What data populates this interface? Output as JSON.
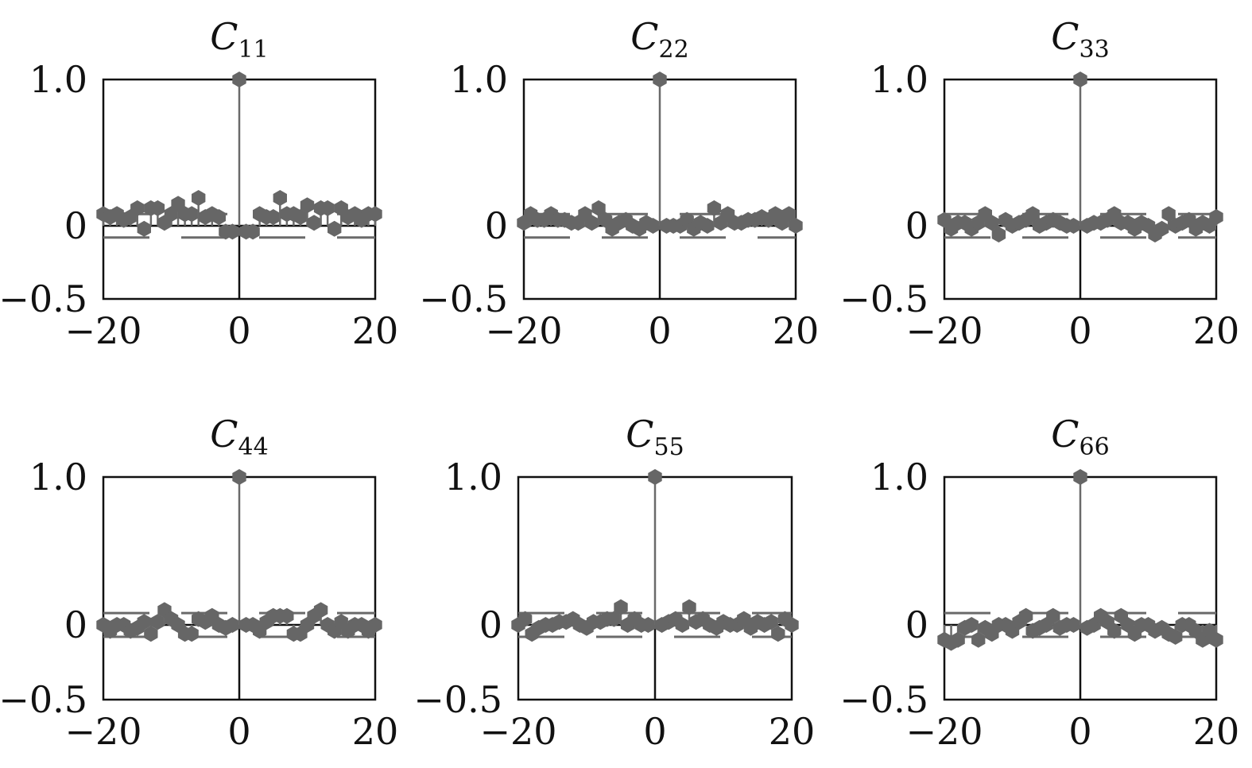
{
  "chart_data": [
    {
      "type": "stem",
      "title": "C",
      "title_subscript": "11",
      "xlim": [
        -20,
        20
      ],
      "ylim": [
        -0.5,
        1.0
      ],
      "xticks": [
        "−20",
        "0",
        "20"
      ],
      "yticks": [
        "1.0",
        "0",
        "−0.5"
      ],
      "lags": [
        -20,
        -19,
        -18,
        -17,
        -16,
        -15,
        -14,
        -13,
        -12,
        -11,
        -10,
        -9,
        -8,
        -7,
        -6,
        -5,
        -4,
        -3,
        -2,
        -1,
        0,
        1,
        2,
        3,
        4,
        5,
        6,
        7,
        8,
        9,
        10,
        11,
        12,
        13,
        14,
        15,
        16,
        17,
        18,
        19,
        20
      ],
      "values": [
        0.08,
        0.06,
        0.08,
        0.04,
        0.06,
        0.12,
        -0.02,
        0.12,
        0.12,
        0.02,
        0.08,
        0.15,
        0.08,
        0.08,
        0.19,
        0.06,
        0.08,
        0.06,
        -0.04,
        -0.04,
        1.0,
        -0.04,
        -0.04,
        0.08,
        0.06,
        0.06,
        0.19,
        0.08,
        0.08,
        0.06,
        0.14,
        0.02,
        0.12,
        0.12,
        -0.02,
        0.12,
        0.06,
        0.08,
        0.04,
        0.08,
        0.08
      ],
      "confidence_bounds": [
        0.08,
        -0.08
      ]
    },
    {
      "type": "stem",
      "title": "C",
      "title_subscript": "22",
      "xlim": [
        -20,
        20
      ],
      "ylim": [
        -0.5,
        1.0
      ],
      "xticks": [
        "−20",
        "0",
        "20"
      ],
      "yticks": [
        "1.0",
        "0",
        "−0.5"
      ],
      "lags": [
        -20,
        -19,
        -18,
        -17,
        -16,
        -15,
        -14,
        -13,
        -12,
        -11,
        -10,
        -9,
        -8,
        -7,
        -6,
        -5,
        -4,
        -3,
        -2,
        -1,
        0,
        1,
        2,
        3,
        4,
        5,
        6,
        7,
        8,
        9,
        10,
        11,
        12,
        13,
        14,
        15,
        16,
        17,
        18,
        19,
        20
      ],
      "values": [
        0.02,
        0.08,
        0.04,
        0.04,
        0.08,
        0.04,
        0.04,
        0.02,
        0.02,
        0.08,
        0.02,
        0.12,
        0.04,
        -0.02,
        0.02,
        0.04,
        0.0,
        -0.02,
        0.02,
        0.0,
        1.0,
        0.0,
        0.0,
        0.0,
        0.04,
        -0.02,
        0.02,
        0.0,
        0.12,
        0.02,
        0.08,
        0.02,
        0.02,
        0.04,
        0.04,
        0.06,
        0.04,
        0.08,
        0.02,
        0.08,
        0.0
      ],
      "confidence_bounds": [
        0.08,
        -0.08
      ]
    },
    {
      "type": "stem",
      "title": "C",
      "title_subscript": "33",
      "xlim": [
        -20,
        20
      ],
      "ylim": [
        -0.5,
        1.0
      ],
      "xticks": [
        "−20",
        "0",
        "20"
      ],
      "yticks": [
        "1.0",
        "0",
        "−0.5"
      ],
      "lags": [
        -20,
        -19,
        -18,
        -17,
        -16,
        -15,
        -14,
        -13,
        -12,
        -11,
        -10,
        -9,
        -8,
        -7,
        -6,
        -5,
        -4,
        -3,
        -2,
        -1,
        0,
        1,
        2,
        3,
        4,
        5,
        6,
        7,
        8,
        9,
        10,
        11,
        12,
        13,
        14,
        15,
        16,
        17,
        18,
        19,
        20
      ],
      "values": [
        0.04,
        -0.02,
        0.02,
        0.02,
        -0.02,
        0.02,
        0.08,
        0.02,
        -0.06,
        0.04,
        0.0,
        0.02,
        0.04,
        0.08,
        0.0,
        0.02,
        0.04,
        0.02,
        0.0,
        0.0,
        1.0,
        0.0,
        0.02,
        0.02,
        0.04,
        0.08,
        0.02,
        0.02,
        -0.02,
        0.02,
        0.0,
        -0.06,
        -0.02,
        0.08,
        0.0,
        0.02,
        0.04,
        -0.02,
        0.02,
        0.0,
        0.06
      ],
      "confidence_bounds": [
        0.08,
        -0.08
      ]
    },
    {
      "type": "stem",
      "title": "C",
      "title_subscript": "44",
      "xlim": [
        -20,
        20
      ],
      "ylim": [
        -0.5,
        1.0
      ],
      "xticks": [
        "−20",
        "0",
        "20"
      ],
      "yticks": [
        "1.0",
        "0",
        "−0.5"
      ],
      "lags": [
        -20,
        -19,
        -18,
        -17,
        -16,
        -15,
        -14,
        -13,
        -12,
        -11,
        -10,
        -9,
        -8,
        -7,
        -6,
        -5,
        -4,
        -3,
        -2,
        -1,
        0,
        1,
        2,
        3,
        4,
        5,
        6,
        7,
        8,
        9,
        10,
        11,
        12,
        13,
        14,
        15,
        16,
        17,
        18,
        19,
        20
      ],
      "values": [
        0.0,
        -0.04,
        0.0,
        0.0,
        -0.04,
        -0.02,
        0.02,
        -0.06,
        0.02,
        0.1,
        0.04,
        0.0,
        -0.06,
        -0.06,
        0.04,
        0.02,
        0.06,
        0.0,
        -0.02,
        0.0,
        1.0,
        0.0,
        0.0,
        -0.04,
        0.02,
        0.06,
        0.06,
        0.06,
        -0.06,
        -0.06,
        0.0,
        0.06,
        0.1,
        0.0,
        -0.04,
        0.02,
        -0.04,
        0.0,
        0.0,
        -0.04,
        0.0
      ],
      "confidence_bounds": [
        0.08,
        -0.08
      ]
    },
    {
      "type": "stem",
      "title": "C",
      "title_subscript": "55",
      "xlim": [
        -20,
        20
      ],
      "ylim": [
        -0.5,
        1.0
      ],
      "xticks": [
        "−20",
        "0",
        "20"
      ],
      "yticks": [
        "1.0",
        "0",
        "−0.5"
      ],
      "lags": [
        -20,
        -19,
        -18,
        -17,
        -16,
        -15,
        -14,
        -13,
        -12,
        -11,
        -10,
        -9,
        -8,
        -7,
        -6,
        -5,
        -4,
        -3,
        -2,
        -1,
        0,
        1,
        2,
        3,
        4,
        5,
        6,
        7,
        8,
        9,
        10,
        11,
        12,
        13,
        14,
        15,
        16,
        17,
        18,
        19,
        20
      ],
      "values": [
        0.0,
        0.04,
        -0.06,
        -0.02,
        0.0,
        0.0,
        0.02,
        0.02,
        0.04,
        0.0,
        -0.02,
        0.02,
        0.02,
        0.04,
        0.04,
        0.12,
        0.0,
        0.04,
        0.0,
        0.0,
        1.0,
        0.0,
        0.02,
        0.04,
        0.0,
        0.12,
        0.02,
        0.04,
        0.0,
        -0.02,
        0.02,
        0.0,
        0.0,
        0.04,
        -0.02,
        0.02,
        0.0,
        0.02,
        -0.06,
        0.04,
        0.0
      ],
      "confidence_bounds": [
        0.08,
        -0.08
      ]
    },
    {
      "type": "stem",
      "title": "C",
      "title_subscript": "66",
      "xlim": [
        -20,
        20
      ],
      "ylim": [
        -0.5,
        1.0
      ],
      "xticks": [
        "−20",
        "0",
        "20"
      ],
      "yticks": [
        "1.0",
        "0",
        "−0.5"
      ],
      "lags": [
        -20,
        -19,
        -18,
        -17,
        -16,
        -15,
        -14,
        -13,
        -12,
        -11,
        -10,
        -9,
        -8,
        -7,
        -6,
        -5,
        -4,
        -3,
        -2,
        -1,
        0,
        1,
        2,
        3,
        4,
        5,
        6,
        7,
        8,
        9,
        10,
        11,
        12,
        13,
        14,
        15,
        16,
        17,
        18,
        19,
        20
      ],
      "values": [
        -0.1,
        -0.12,
        -0.1,
        -0.02,
        0.0,
        -0.1,
        -0.02,
        -0.06,
        0.0,
        0.0,
        -0.04,
        0.02,
        0.06,
        -0.04,
        -0.02,
        0.0,
        0.06,
        -0.02,
        0.0,
        0.0,
        1.0,
        -0.02,
        0.0,
        0.06,
        0.02,
        -0.04,
        0.06,
        0.0,
        -0.06,
        0.0,
        0.0,
        -0.04,
        -0.02,
        -0.06,
        -0.08,
        0.0,
        0.0,
        -0.04,
        -0.1,
        -0.04,
        -0.1
      ],
      "confidence_bounds": [
        0.08,
        -0.08
      ]
    }
  ]
}
